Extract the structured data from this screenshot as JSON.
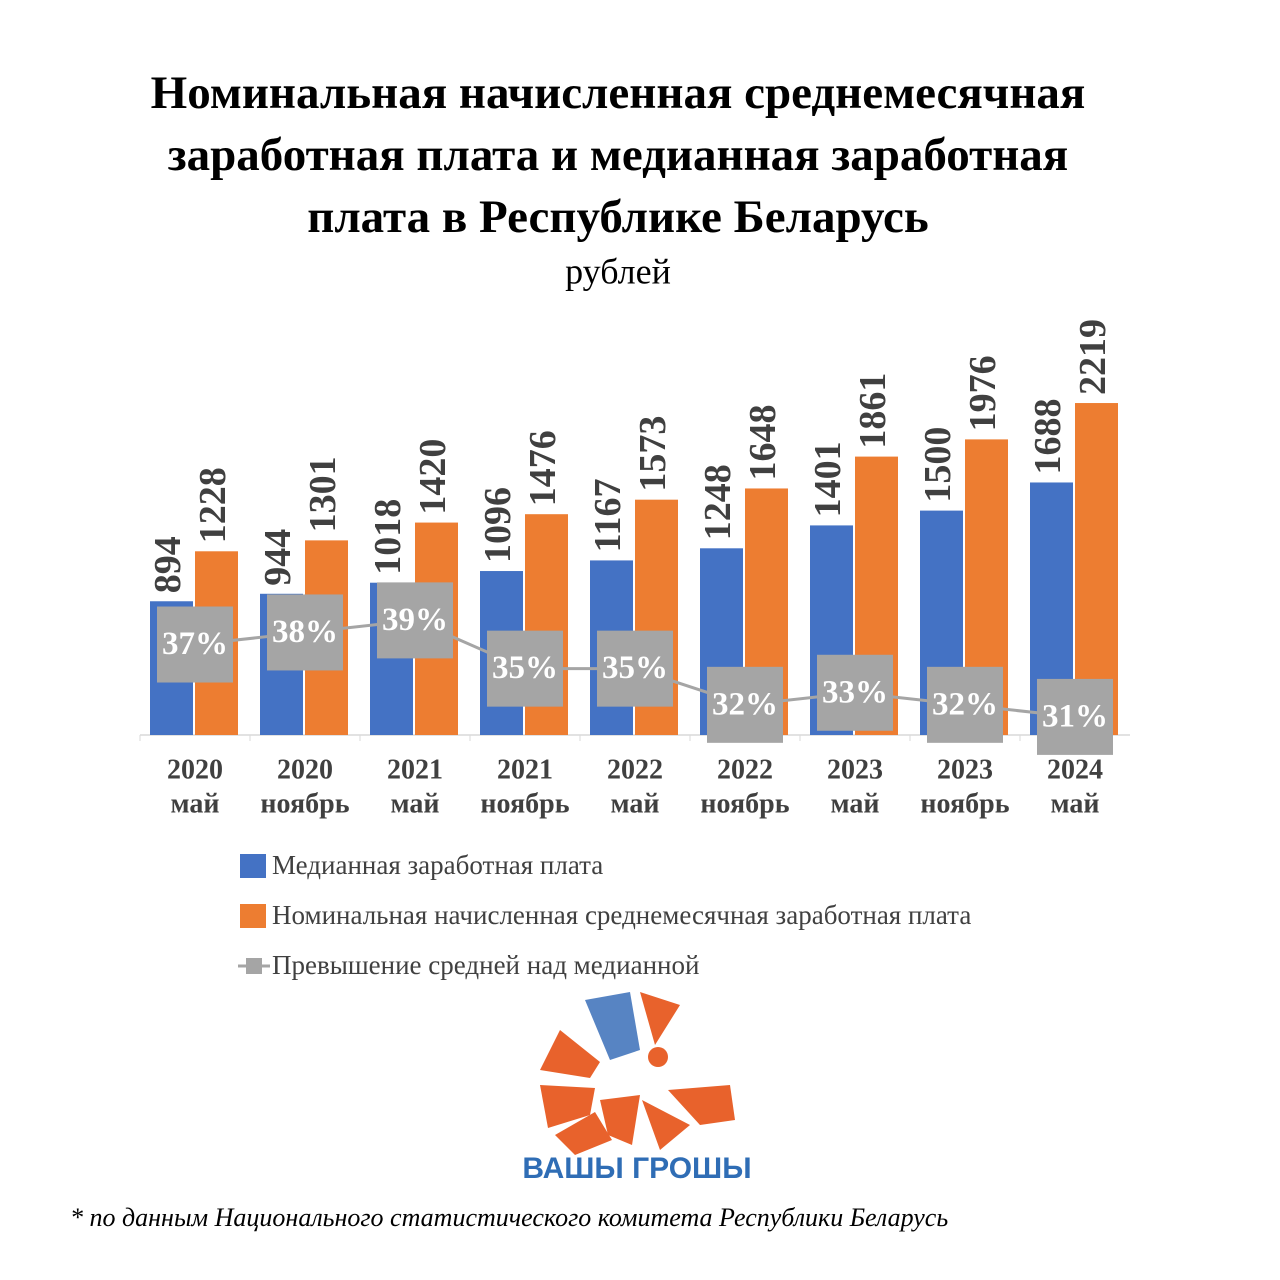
{
  "chart_data": {
    "type": "bar-line",
    "title": [
      "Номинальная начисленная среднемесячная",
      "заработная плата и медианная заработная",
      "плата в Республике Беларусь"
    ],
    "subtitle": "рублей",
    "categories": [
      [
        "2020",
        "май"
      ],
      [
        "2020",
        "ноябрь"
      ],
      [
        "2021",
        "май"
      ],
      [
        "2021",
        "ноябрь"
      ],
      [
        "2022",
        "май"
      ],
      [
        "2022",
        "ноябрь"
      ],
      [
        "2023",
        "май"
      ],
      [
        "2023",
        "ноябрь"
      ],
      [
        "2024",
        "май"
      ]
    ],
    "ylim": [
      0,
      2500
    ],
    "y2lim": [
      29.5,
      60.5
    ],
    "series": [
      {
        "name": "Медианная заработная плата",
        "color": "#4472c4",
        "values": [
          894,
          944,
          1018,
          1096,
          1167,
          1248,
          1401,
          1500,
          1688
        ]
      },
      {
        "name": "Номинальная начисленная среднемесячная заработная плата",
        "color": "#ed7d31",
        "values": [
          1228,
          1301,
          1420,
          1476,
          1573,
          1648,
          1861,
          1976,
          2219
        ]
      },
      {
        "name": "Превышение средней над медианной",
        "color": "#a5a5a5",
        "axis": "y2",
        "values": [
          37,
          38,
          39,
          35,
          35,
          32,
          33,
          32,
          31
        ],
        "value_labels": [
          "37%",
          "38%",
          "39%",
          "35%",
          "35%",
          "32%",
          "33%",
          "32%",
          "31%"
        ]
      }
    ],
    "logo_text": "ВАШЫ ГРОШЫ",
    "footnote": "* по данным Национального статистического комитета Республики Беларусь"
  }
}
